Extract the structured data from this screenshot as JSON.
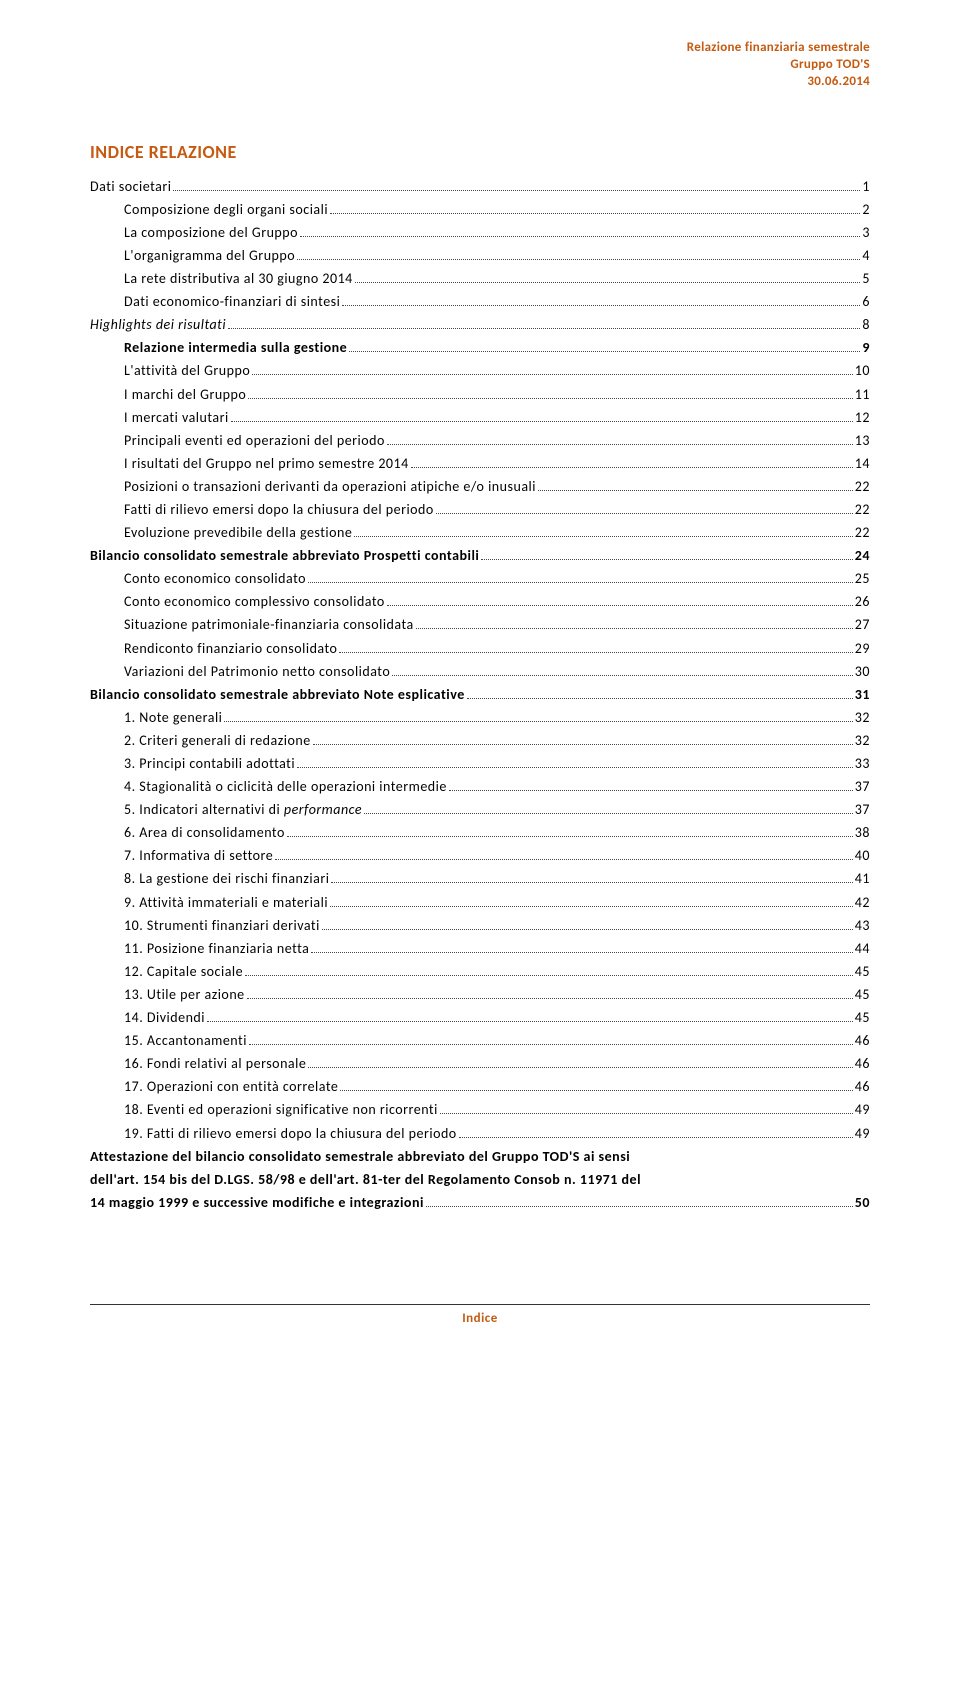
{
  "header": {
    "line1": "Relazione finanziaria semestrale",
    "line2": "Gruppo TOD'S",
    "line3": "30.06.2014"
  },
  "title": "INDICE RELAZIONE",
  "toc": [
    {
      "label": "Dati societari",
      "page": "1",
      "indent": 0,
      "bold": false,
      "italic": false
    },
    {
      "label": "Composizione degli organi sociali",
      "page": "2",
      "indent": 1,
      "bold": false,
      "italic": false
    },
    {
      "label": "La composizione del Gruppo",
      "page": "3",
      "indent": 1,
      "bold": false,
      "italic": false
    },
    {
      "label": "L'organigramma del Gruppo",
      "page": "4",
      "indent": 1,
      "bold": false,
      "italic": false
    },
    {
      "label": "La rete distributiva al 30 giugno 2014",
      "page": "5",
      "indent": 1,
      "bold": false,
      "italic": false
    },
    {
      "label": "Dati economico-finanziari di sintesi",
      "page": "6",
      "indent": 1,
      "bold": false,
      "italic": false
    },
    {
      "label": "Highlights dei risultati",
      "page": "8",
      "indent": 0,
      "bold": false,
      "italic": true
    },
    {
      "label": "Relazione intermedia sulla gestione",
      "page": "9",
      "indent": 1,
      "bold": true,
      "italic": false
    },
    {
      "label": "L'attività del Gruppo",
      "page": "10",
      "indent": 1,
      "bold": false,
      "italic": false
    },
    {
      "label": "I marchi del Gruppo",
      "page": "11",
      "indent": 1,
      "bold": false,
      "italic": false
    },
    {
      "label": "I mercati valutari",
      "page": "12",
      "indent": 1,
      "bold": false,
      "italic": false
    },
    {
      "label": "Principali eventi ed operazioni del periodo",
      "page": "13",
      "indent": 1,
      "bold": false,
      "italic": false
    },
    {
      "label": "I risultati del Gruppo nel primo semestre 2014",
      "page": "14",
      "indent": 1,
      "bold": false,
      "italic": false
    },
    {
      "label": "Posizioni o transazioni derivanti da operazioni atipiche e/o inusuali",
      "page": "22",
      "indent": 1,
      "bold": false,
      "italic": false
    },
    {
      "label": "Fatti di rilievo emersi dopo la chiusura del periodo",
      "page": "22",
      "indent": 1,
      "bold": false,
      "italic": false
    },
    {
      "label": "Evoluzione prevedibile della gestione",
      "page": "22",
      "indent": 1,
      "bold": false,
      "italic": false
    },
    {
      "label": "Bilancio consolidato semestrale abbreviato Prospetti contabili",
      "page": "24",
      "indent": 0,
      "bold": true,
      "italic": false
    },
    {
      "label": "Conto economico consolidato",
      "page": "25",
      "indent": 1,
      "bold": false,
      "italic": false
    },
    {
      "label": "Conto economico complessivo consolidato",
      "page": "26",
      "indent": 1,
      "bold": false,
      "italic": false
    },
    {
      "label": "Situazione patrimoniale-finanziaria consolidata",
      "page": "27",
      "indent": 1,
      "bold": false,
      "italic": false
    },
    {
      "label": "Rendiconto finanziario consolidato",
      "page": "29",
      "indent": 1,
      "bold": false,
      "italic": false
    },
    {
      "label": "Variazioni del Patrimonio netto consolidato",
      "page": "30",
      "indent": 1,
      "bold": false,
      "italic": false
    },
    {
      "label": "Bilancio consolidato semestrale abbreviato Note esplicative",
      "page": "31",
      "indent": 0,
      "bold": true,
      "italic": false
    },
    {
      "label": "1.  Note generali",
      "page": "32",
      "indent": 1,
      "bold": false,
      "italic": false
    },
    {
      "label": "2.  Criteri generali di redazione",
      "page": "32",
      "indent": 1,
      "bold": false,
      "italic": false
    },
    {
      "label": "3.  Principi contabili adottati",
      "page": "33",
      "indent": 1,
      "bold": false,
      "italic": false
    },
    {
      "label": "4.  Stagionalità o ciclicità delle operazioni intermedie",
      "page": "37",
      "indent": 1,
      "bold": false,
      "italic": false
    },
    {
      "label": "5.  Indicatori alternativi di performance",
      "page": "37",
      "indent": 0,
      "bold": false,
      "italic": true,
      "customIndent": 34
    },
    {
      "label": "6.  Area di consolidamento",
      "page": "38",
      "indent": 1,
      "bold": false,
      "italic": false
    },
    {
      "label": "7.  Informativa di settore",
      "page": "40",
      "indent": 1,
      "bold": false,
      "italic": false
    },
    {
      "label": "8.  La gestione dei rischi finanziari",
      "page": "41",
      "indent": 1,
      "bold": false,
      "italic": false
    },
    {
      "label": "9.  Attività immateriali e materiali",
      "page": "42",
      "indent": 1,
      "bold": false,
      "italic": false
    },
    {
      "label": "10. Strumenti finanziari derivati",
      "page": "43",
      "indent": 1,
      "bold": false,
      "italic": false
    },
    {
      "label": "11. Posizione finanziaria netta",
      "page": "44",
      "indent": 1,
      "bold": false,
      "italic": false
    },
    {
      "label": "12. Capitale sociale",
      "page": "45",
      "indent": 1,
      "bold": false,
      "italic": false
    },
    {
      "label": "13. Utile per azione",
      "page": "45",
      "indent": 1,
      "bold": false,
      "italic": false
    },
    {
      "label": "14. Dividendi",
      "page": "45",
      "indent": 1,
      "bold": false,
      "italic": false
    },
    {
      "label": "15. Accantonamenti",
      "page": "46",
      "indent": 1,
      "bold": false,
      "italic": false
    },
    {
      "label": "16. Fondi relativi al personale",
      "page": "46",
      "indent": 1,
      "bold": false,
      "italic": false
    },
    {
      "label": "17. Operazioni con entità correlate",
      "page": "46",
      "indent": 1,
      "bold": false,
      "italic": false
    },
    {
      "label": "18. Eventi ed operazioni significative non ricorrenti",
      "page": "49",
      "indent": 1,
      "bold": false,
      "italic": false
    },
    {
      "label": "19. Fatti di rilievo emersi dopo la chiusura del periodo",
      "page": "49",
      "indent": 1,
      "bold": false,
      "italic": false
    }
  ],
  "attestation": {
    "line1": "Attestazione del bilancio consolidato semestrale abbreviato del Gruppo TOD'S ai sensi",
    "line2": "dell'art. 154 bis del D.LGS. 58/98 e dell'art. 81-ter del Regolamento Consob n. 11971 del",
    "lastLabel": "14 maggio 1999 e successive modifiche e integrazioni",
    "page": "50"
  },
  "footer": "Indice",
  "colors": {
    "accent": "#c55a11",
    "text": "#000000",
    "background": "#ffffff"
  }
}
